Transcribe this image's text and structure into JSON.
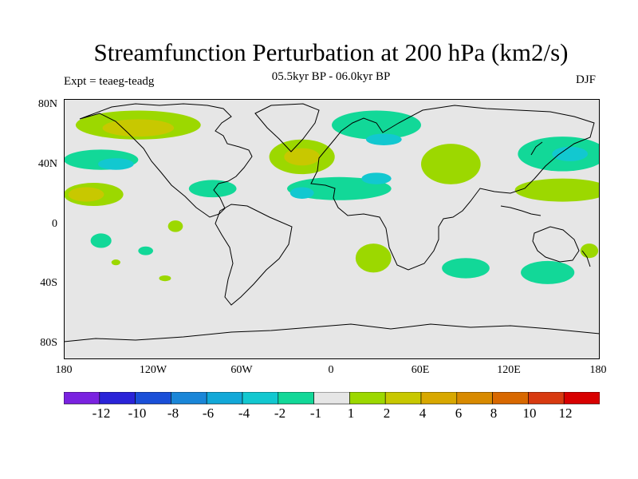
{
  "title": "Streamfunction Perturbation at 200 hPa (km2/s)",
  "subtitle": "05.5kyr BP - 06.0kyr BP",
  "experiment_label": "Expt = teaeg-teadg",
  "season": "DJF",
  "y_axis_labels": [
    "80N",
    "40N",
    "0",
    "40S",
    "80S"
  ],
  "x_axis_labels": [
    "180",
    "120W",
    "60W",
    "0",
    "60E",
    "120E",
    "180"
  ],
  "colorbar": {
    "colors": [
      "#7a22e0",
      "#2a23d8",
      "#1a4fd8",
      "#1a86d8",
      "#12a8d8",
      "#12c8d0",
      "#12d898",
      "#e6e6e6",
      "#9cd800",
      "#c8c800",
      "#d8a800",
      "#d88a00",
      "#d86800",
      "#d83a10",
      "#d80000"
    ],
    "labels": [
      "-12",
      "-10",
      "-8",
      "-6",
      "-4",
      "-2",
      "-1",
      "1",
      "2",
      "4",
      "6",
      "8",
      "10",
      "12"
    ]
  },
  "colors": {
    "ocean_background": "#e6e6e6",
    "coastline": "#000000",
    "neg_weak": "#12d898",
    "neg_mid": "#12c8d0",
    "pos_weak": "#9cd800",
    "pos_mid": "#c8c800"
  },
  "map": {
    "lon_range": [
      -180,
      180
    ],
    "lat_range": [
      -90,
      90
    ],
    "anomalies": [
      {
        "name": "north-pacific-positive",
        "level": 2,
        "lon": -130,
        "lat": 72,
        "rlon": 42,
        "rlat": 10
      },
      {
        "name": "arctic-canada-core",
        "level": 4,
        "lon": -130,
        "lat": 70,
        "rlon": 24,
        "rlat": 6
      },
      {
        "name": "alaska-negative",
        "level": -1,
        "lon": -155,
        "lat": 48,
        "rlon": 25,
        "rlat": 7
      },
      {
        "name": "north-pacific-negative-core",
        "level": -2,
        "lon": -145,
        "lat": 45,
        "rlon": 12,
        "rlat": 4
      },
      {
        "name": "east-pacific-positive",
        "level": 2,
        "lon": -160,
        "lat": 24,
        "rlon": 20,
        "rlat": 8
      },
      {
        "name": "east-pacific-positive-core",
        "level": 4,
        "lon": -165,
        "lat": 24,
        "rlon": 12,
        "rlat": 5
      },
      {
        "name": "caribbean-negative",
        "level": -1,
        "lon": -80,
        "lat": 28,
        "rlon": 16,
        "rlat": 6
      },
      {
        "name": "north-atlantic-positive",
        "level": 2,
        "lon": -20,
        "lat": 50,
        "rlon": 22,
        "rlat": 12
      },
      {
        "name": "north-atlantic-positive-core",
        "level": 4,
        "lon": -20,
        "lat": 50,
        "rlon": 12,
        "rlat": 6
      },
      {
        "name": "mediterranean-negative",
        "level": -1,
        "lon": 5,
        "lat": 28,
        "rlon": 35,
        "rlat": 8
      },
      {
        "name": "atlantic-negative-core",
        "level": -2,
        "lon": -20,
        "lat": 25,
        "rlon": 8,
        "rlat": 4
      },
      {
        "name": "mideast-negative-core",
        "level": -2,
        "lon": 30,
        "lat": 35,
        "rlon": 10,
        "rlat": 4
      },
      {
        "name": "arctic-europe-negative",
        "level": -1,
        "lon": 30,
        "lat": 72,
        "rlon": 30,
        "rlat": 10
      },
      {
        "name": "scandinavia-negative-core",
        "level": -2,
        "lon": 35,
        "lat": 62,
        "rlon": 12,
        "rlat": 4
      },
      {
        "name": "central-asia-positive",
        "level": 2,
        "lon": 80,
        "lat": 45,
        "rlon": 20,
        "rlat": 14
      },
      {
        "name": "northeast-asia-negative",
        "level": -1,
        "lon": 155,
        "lat": 52,
        "rlon": 30,
        "rlat": 12
      },
      {
        "name": "northeast-asia-negative-core",
        "level": -2,
        "lon": 160,
        "lat": 52,
        "rlon": 12,
        "rlat": 5
      },
      {
        "name": "west-pacific-positive",
        "level": 2,
        "lon": 155,
        "lat": 27,
        "rlon": 32,
        "rlat": 8
      },
      {
        "name": "east-pacific-small-positive",
        "level": 2,
        "lon": -105,
        "lat": 2,
        "rlon": 5,
        "rlat": 4
      },
      {
        "name": "south-pacific-negative",
        "level": -1,
        "lon": -155,
        "lat": -8,
        "rlon": 7,
        "rlat": 5
      },
      {
        "name": "south-pacific-small-negative",
        "level": -1,
        "lon": -125,
        "lat": -15,
        "rlon": 5,
        "rlat": 3
      },
      {
        "name": "south-pacific-small-positive",
        "level": 2,
        "lon": -145,
        "lat": -23,
        "rlon": 3,
        "rlat": 2
      },
      {
        "name": "southeast-pacific-small-positive",
        "level": 2,
        "lon": -112,
        "lat": -34,
        "rlon": 4,
        "rlat": 2
      },
      {
        "name": "south-africa-positive",
        "level": 2,
        "lon": 28,
        "lat": -20,
        "rlon": 12,
        "rlat": 10
      },
      {
        "name": "indian-ocean-negative",
        "level": -1,
        "lon": 90,
        "lat": -27,
        "rlon": 16,
        "rlat": 7
      },
      {
        "name": "australia-negative",
        "level": -1,
        "lon": 145,
        "lat": -30,
        "rlon": 18,
        "rlat": 8
      },
      {
        "name": "tasman-positive",
        "level": 2,
        "lon": 173,
        "lat": -15,
        "rlon": 6,
        "rlat": 5
      }
    ]
  }
}
